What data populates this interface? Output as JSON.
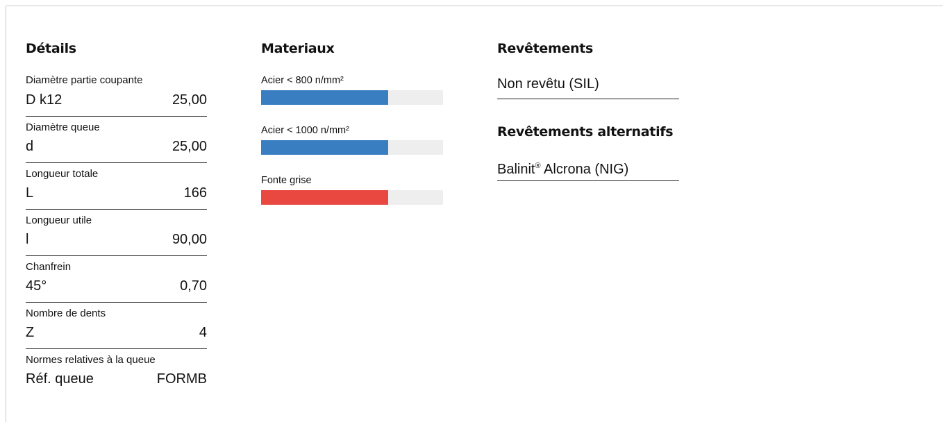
{
  "details": {
    "title": "Détails",
    "rows": [
      {
        "label": "Diamètre partie coupante",
        "symbol": "D k12",
        "value": "25,00"
      },
      {
        "label": "Diamètre queue",
        "symbol": "d",
        "value": "25,00"
      },
      {
        "label": "Longueur totale",
        "symbol": "L",
        "value": "166"
      },
      {
        "label": "Longueur utile",
        "symbol": "l",
        "value": "90,00"
      },
      {
        "label": "Chanfrein",
        "symbol": "45°",
        "value": "0,70"
      },
      {
        "label": "Nombre de dents",
        "symbol": "Z",
        "value": "4"
      },
      {
        "label": "Normes relatives à la queue",
        "symbol": "Réf. queue",
        "value": "FORMB"
      }
    ]
  },
  "materials": {
    "title": "Materiaux",
    "items": [
      {
        "label": "Acier < 800 n/mm²",
        "suitability": 0.7,
        "color": "#3a7ec2"
      },
      {
        "label": "Acier < 1000 n/mm²",
        "suitability": 0.7,
        "color": "#3a7ec2"
      },
      {
        "label": "Fonte grise",
        "suitability": 0.7,
        "color": "#e8483f"
      }
    ],
    "track_color": "#eeeeee"
  },
  "coatings": {
    "title": "Revêtements",
    "current": "Non revêtu (SIL)",
    "alternatives_title": "Revêtements alternatifs",
    "alternative_brand": "Balinit",
    "alternative_mark": "®",
    "alternative_rest": " Alcrona (NIG)"
  }
}
